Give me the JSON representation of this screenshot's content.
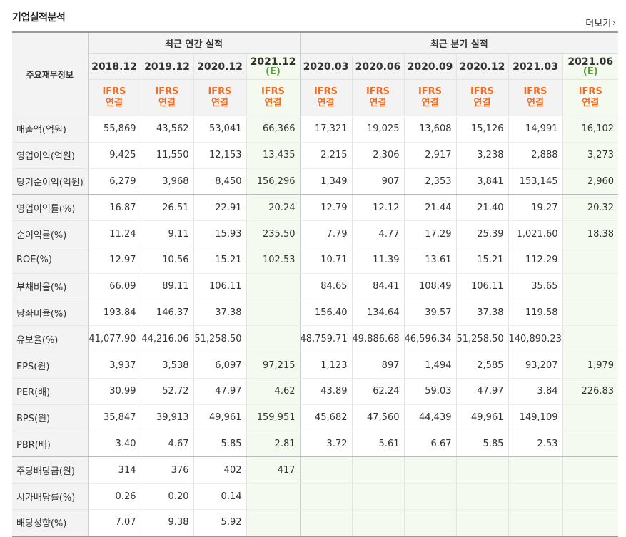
{
  "title": "기업실적분석",
  "more_label": "더보기",
  "table": {
    "corner_label": "주요재무정보",
    "annual_label": "최근 연간 실적",
    "quarter_label": "최근 분기 실적",
    "periods": [
      {
        "year": "2018.12",
        "est": "",
        "acct1": "IFRS",
        "acct2": "연결"
      },
      {
        "year": "2019.12",
        "est": "",
        "acct1": "IFRS",
        "acct2": "연결"
      },
      {
        "year": "2020.12",
        "est": "",
        "acct1": "IFRS",
        "acct2": "연결"
      },
      {
        "year": "2021.12",
        "est": "(E)",
        "acct1": "IFRS",
        "acct2": "연결"
      },
      {
        "year": "2020.03",
        "est": "",
        "acct1": "IFRS",
        "acct2": "연결"
      },
      {
        "year": "2020.06",
        "est": "",
        "acct1": "IFRS",
        "acct2": "연결"
      },
      {
        "year": "2020.09",
        "est": "",
        "acct1": "IFRS",
        "acct2": "연결"
      },
      {
        "year": "2020.12",
        "est": "",
        "acct1": "IFRS",
        "acct2": "연결"
      },
      {
        "year": "2021.03",
        "est": "",
        "acct1": "IFRS",
        "acct2": "연결"
      },
      {
        "year": "2021.06",
        "est": "(E)",
        "acct1": "IFRS",
        "acct2": "연결"
      }
    ],
    "rows": [
      {
        "label": "매출액(억원)",
        "values": [
          "55,869",
          "43,562",
          "53,041",
          "66,366",
          "17,321",
          "19,025",
          "13,608",
          "15,126",
          "14,991",
          "16,102"
        ]
      },
      {
        "label": "영업이익(억원)",
        "values": [
          "9,425",
          "11,550",
          "12,153",
          "13,435",
          "2,215",
          "2,306",
          "2,917",
          "3,238",
          "2,888",
          "3,273"
        ]
      },
      {
        "label": "당기순이익(억원)",
        "values": [
          "6,279",
          "3,968",
          "8,450",
          "156,296",
          "1,349",
          "907",
          "2,353",
          "3,841",
          "153,145",
          "2,960"
        ]
      },
      {
        "label": "영업이익률(%)",
        "values": [
          "16.87",
          "26.51",
          "22.91",
          "20.24",
          "12.79",
          "12.12",
          "21.44",
          "21.40",
          "19.27",
          "20.32"
        ]
      },
      {
        "label": "순이익률(%)",
        "values": [
          "11.24",
          "9.11",
          "15.93",
          "235.50",
          "7.79",
          "4.77",
          "17.29",
          "25.39",
          "1,021.60",
          "18.38"
        ]
      },
      {
        "label": "ROE(%)",
        "values": [
          "12.97",
          "10.56",
          "15.21",
          "102.53",
          "10.71",
          "11.39",
          "13.61",
          "15.21",
          "112.29",
          ""
        ]
      },
      {
        "label": "부채비율(%)",
        "values": [
          "66.09",
          "89.11",
          "106.11",
          "",
          "84.65",
          "84.41",
          "108.49",
          "106.11",
          "35.65",
          ""
        ]
      },
      {
        "label": "당좌비율(%)",
        "values": [
          "193.84",
          "146.37",
          "37.38",
          "",
          "156.40",
          "134.64",
          "39.57",
          "37.38",
          "119.58",
          ""
        ]
      },
      {
        "label": "유보율(%)",
        "values": [
          "41,077.90",
          "44,216.06",
          "51,258.50",
          "",
          "48,759.71",
          "49,886.68",
          "46,596.34",
          "51,258.50",
          "140,890.23",
          ""
        ]
      },
      {
        "label": "EPS(원)",
        "values": [
          "3,937",
          "3,538",
          "6,097",
          "97,215",
          "1,123",
          "897",
          "1,494",
          "2,585",
          "93,207",
          "1,979"
        ]
      },
      {
        "label": "PER(배)",
        "values": [
          "30.99",
          "52.72",
          "47.97",
          "4.62",
          "43.89",
          "62.24",
          "59.03",
          "47.97",
          "3.84",
          "226.83"
        ]
      },
      {
        "label": "BPS(원)",
        "values": [
          "35,847",
          "39,913",
          "49,961",
          "159,951",
          "45,682",
          "47,560",
          "44,439",
          "49,961",
          "149,109",
          ""
        ]
      },
      {
        "label": "PBR(배)",
        "values": [
          "3.40",
          "4.67",
          "5.85",
          "2.81",
          "3.72",
          "5.61",
          "6.67",
          "5.85",
          "2.53",
          ""
        ]
      },
      {
        "label": "주당배당금(원)",
        "values": [
          "314",
          "376",
          "402",
          "417",
          "",
          "",
          "",
          "",
          "",
          ""
        ]
      },
      {
        "label": "시가배당률(%)",
        "values": [
          "0.26",
          "0.20",
          "0.14",
          "",
          "",
          "",
          "",
          "",
          "",
          ""
        ]
      },
      {
        "label": "배당성향(%)",
        "values": [
          "7.07",
          "9.38",
          "5.92",
          "",
          "",
          "",
          "",
          "",
          "",
          ""
        ]
      }
    ]
  },
  "colors": {
    "ifrs_text": "#f26b21",
    "estimate_bg": "#f4faef",
    "header_bg": "#f3f3f3"
  }
}
